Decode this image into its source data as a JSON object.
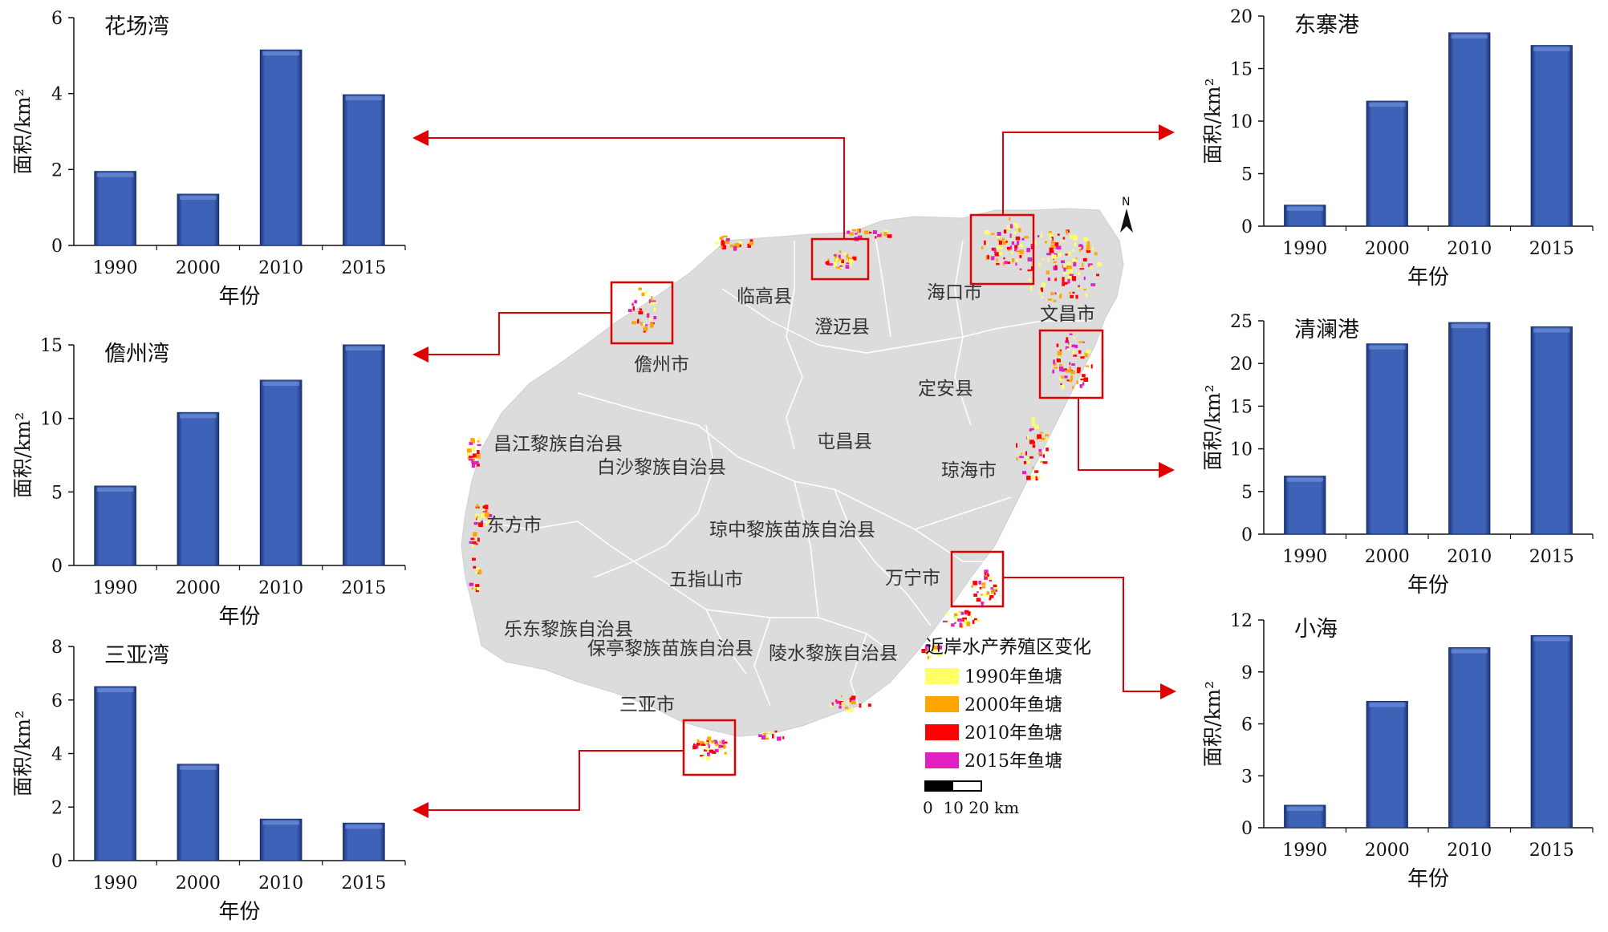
{
  "chart_data": [
    {
      "id": "huachang",
      "type": "bar",
      "title": "花场湾",
      "categories": [
        "1990",
        "2000",
        "2010",
        "2015"
      ],
      "values": [
        1.95,
        1.35,
        5.15,
        3.97
      ],
      "ylim": [
        0,
        6
      ],
      "yticks": [
        0,
        2,
        4,
        6
      ],
      "ylabel": "面积/km²",
      "xlabel": "年份"
    },
    {
      "id": "danzhou",
      "type": "bar",
      "title": "儋州湾",
      "categories": [
        "1990",
        "2000",
        "2010",
        "2015"
      ],
      "values": [
        5.4,
        10.4,
        12.6,
        15.0
      ],
      "ylim": [
        0,
        15
      ],
      "yticks": [
        0,
        5,
        10,
        15
      ],
      "ylabel": "面积/km²",
      "xlabel": "年份"
    },
    {
      "id": "sanya",
      "type": "bar",
      "title": "三亚湾",
      "categories": [
        "1990",
        "2000",
        "2010",
        "2015"
      ],
      "values": [
        6.5,
        3.6,
        1.55,
        1.4
      ],
      "ylim": [
        0,
        8
      ],
      "yticks": [
        0,
        2,
        4,
        6,
        8
      ],
      "ylabel": "面积/km²",
      "xlabel": "年份"
    },
    {
      "id": "dongzhai",
      "type": "bar",
      "title": "东寨港",
      "categories": [
        "1990",
        "2000",
        "2010",
        "2015"
      ],
      "values": [
        2.0,
        11.9,
        18.4,
        17.2
      ],
      "ylim": [
        0,
        20
      ],
      "yticks": [
        0,
        5,
        10,
        15,
        20
      ],
      "ylabel": "面积/km²",
      "xlabel": "年份"
    },
    {
      "id": "qinglan",
      "type": "bar",
      "title": "清澜港",
      "categories": [
        "1990",
        "2000",
        "2010",
        "2015"
      ],
      "values": [
        6.8,
        22.3,
        24.8,
        24.3
      ],
      "ylim": [
        0,
        25
      ],
      "yticks": [
        0,
        5,
        10,
        15,
        20,
        25
      ],
      "ylabel": "面积/km²",
      "xlabel": "年份"
    },
    {
      "id": "xiaohai",
      "type": "bar",
      "title": "小海",
      "categories": [
        "1990",
        "2000",
        "2010",
        "2015"
      ],
      "values": [
        1.3,
        7.3,
        10.4,
        11.1
      ],
      "ylim": [
        0,
        12
      ],
      "yticks": [
        0,
        3,
        6,
        9,
        12
      ],
      "ylabel": "面积/km²",
      "xlabel": "年份"
    }
  ],
  "map": {
    "counties": [
      "临高县",
      "澄迈县",
      "海口市",
      "文昌市",
      "儋州市",
      "定安县",
      "昌江黎族自治县",
      "白沙黎族自治县",
      "屯昌县",
      "琼海市",
      "东方市",
      "琼中黎族苗族自治县",
      "万宁市",
      "五指山市",
      "乐东黎族自治县",
      "保亭黎族苗族自治县",
      "陵水黎族自治县",
      "三亚市"
    ],
    "north_label": "N",
    "scale_text": "0  10 20 km",
    "legend": {
      "title": "近岸水产养殖区变化",
      "items": [
        {
          "label": "1990年鱼塘",
          "color": "#ffff66"
        },
        {
          "label": "2000年鱼塘",
          "color": "#ffa500"
        },
        {
          "label": "2010年鱼塘",
          "color": "#ff0000"
        },
        {
          "label": "2015年鱼塘",
          "color": "#e020c0"
        }
      ]
    }
  },
  "colors": {
    "bar": "#2f4fa0",
    "arrow": "#e00000",
    "land": "#dcdcdc"
  }
}
